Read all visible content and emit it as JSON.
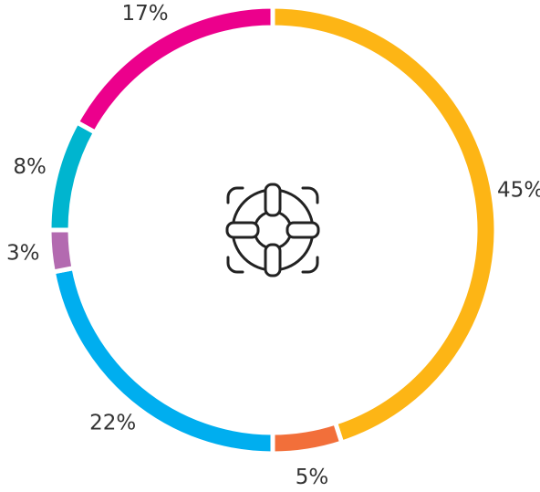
{
  "chart_data": {
    "type": "donut",
    "categories": [
      null,
      null,
      null,
      null,
      null,
      null
    ],
    "values": [
      45,
      5,
      22,
      3,
      8,
      17
    ],
    "value_labels": [
      "45%",
      "5%",
      "22%",
      "3%",
      "8%",
      "17%"
    ],
    "colors": [
      "#fdb515",
      "#f26f3a",
      "#00aeef",
      "#b36ab0",
      "#00b5cf",
      "#ec008c"
    ]
  }
}
